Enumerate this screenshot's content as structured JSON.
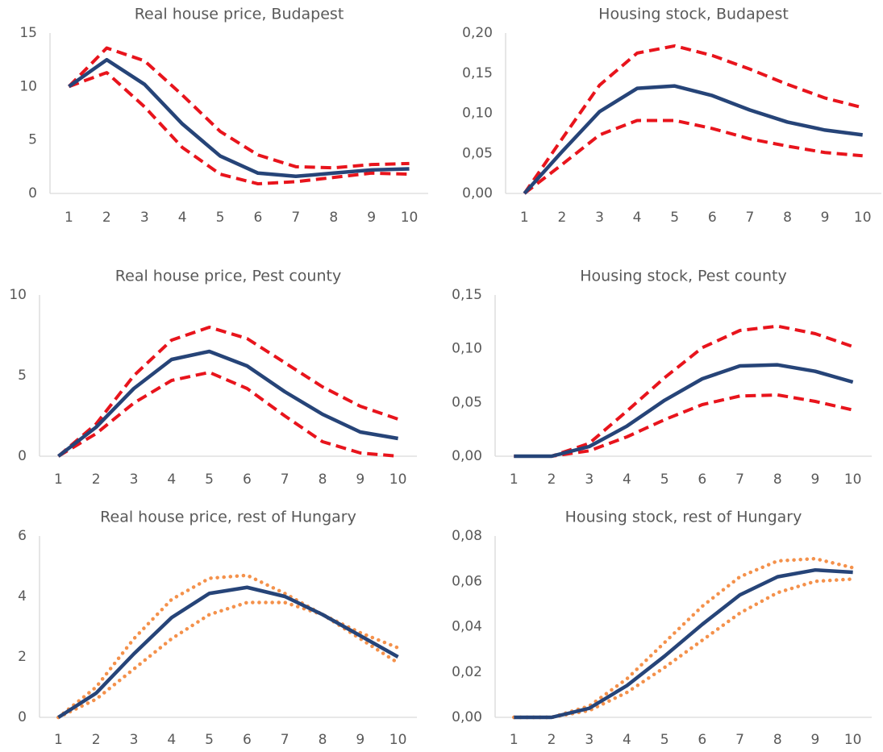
{
  "chart_data": [
    {
      "type": "line",
      "title": "Real house price, Budapest",
      "categories": [
        1,
        2,
        3,
        4,
        5,
        6,
        7,
        8,
        9,
        10
      ],
      "ylim": [
        0,
        15
      ],
      "yticks": [
        0,
        5,
        10,
        15
      ],
      "series": [
        {
          "color": "#e8141c",
          "style": "dashed",
          "values": [
            10,
            13.6,
            12.4,
            9.2,
            5.8,
            3.6,
            2.5,
            2.4,
            2.7,
            2.8
          ]
        },
        {
          "color": "#e8141c",
          "style": "dashed",
          "values": [
            10,
            11.3,
            8.1,
            4.3,
            1.8,
            0.9,
            1.1,
            1.5,
            1.9,
            1.8
          ]
        },
        {
          "color": "#264478",
          "style": "solid",
          "values": [
            10,
            12.5,
            10.2,
            6.5,
            3.5,
            1.9,
            1.6,
            1.9,
            2.2,
            2.3
          ]
        }
      ]
    },
    {
      "type": "line",
      "title": "Housing stock, Budapest",
      "categories": [
        1,
        2,
        3,
        4,
        5,
        6,
        7,
        8,
        9,
        10
      ],
      "ylim": [
        0,
        0.2
      ],
      "yticks": [
        {
          "value": 0,
          "label": "0,00"
        },
        {
          "value": 0.05,
          "label": "0,05"
        },
        {
          "value": 0.1,
          "label": "0,10"
        },
        {
          "value": 0.15,
          "label": "0,15"
        },
        {
          "value": 0.2,
          "label": "0,20"
        }
      ],
      "series": [
        {
          "color": "#e8141c",
          "style": "dashed",
          "values": [
            0,
            0.068,
            0.135,
            0.175,
            0.184,
            0.172,
            0.155,
            0.136,
            0.119,
            0.107
          ]
        },
        {
          "color": "#e8141c",
          "style": "dashed",
          "values": [
            0,
            0.036,
            0.073,
            0.091,
            0.091,
            0.081,
            0.068,
            0.059,
            0.051,
            0.047
          ]
        },
        {
          "color": "#264478",
          "style": "solid",
          "values": [
            0,
            0.052,
            0.102,
            0.131,
            0.134,
            0.122,
            0.104,
            0.089,
            0.079,
            0.073
          ]
        }
      ]
    },
    {
      "type": "line",
      "title": "Real house price, Pest county",
      "categories": [
        1,
        2,
        3,
        4,
        5,
        6,
        7,
        8,
        9,
        10
      ],
      "ylim": [
        0,
        10
      ],
      "yticks": [
        0,
        5,
        10
      ],
      "series": [
        {
          "color": "#e8141c",
          "style": "dashed",
          "values": [
            0,
            2.0,
            5.0,
            7.2,
            8.0,
            7.3,
            5.8,
            4.3,
            3.1,
            2.3
          ]
        },
        {
          "color": "#e8141c",
          "style": "dashed",
          "values": [
            0,
            1.4,
            3.3,
            4.7,
            5.2,
            4.2,
            2.5,
            0.9,
            0.2,
            0
          ]
        },
        {
          "color": "#264478",
          "style": "solid",
          "values": [
            0,
            1.8,
            4.2,
            6.0,
            6.5,
            5.6,
            4.0,
            2.6,
            1.5,
            1.1
          ]
        }
      ]
    },
    {
      "type": "line",
      "title": "Housing stock, Pest county",
      "categories": [
        1,
        2,
        3,
        4,
        5,
        6,
        7,
        8,
        9,
        10
      ],
      "ylim": [
        0,
        0.15
      ],
      "yticks": [
        {
          "value": 0,
          "label": "0,00"
        },
        {
          "value": 0.05,
          "label": "0,05"
        },
        {
          "value": 0.1,
          "label": "0,10"
        },
        {
          "value": 0.15,
          "label": "0,15"
        }
      ],
      "series": [
        {
          "color": "#e8141c",
          "style": "dashed",
          "values": [
            0,
            0,
            0.012,
            0.042,
            0.073,
            0.101,
            0.117,
            0.121,
            0.114,
            0.102
          ]
        },
        {
          "color": "#e8141c",
          "style": "dashed",
          "values": [
            0,
            0,
            0.005,
            0.018,
            0.034,
            0.048,
            0.056,
            0.057,
            0.051,
            0.043
          ]
        },
        {
          "color": "#264478",
          "style": "solid",
          "values": [
            0,
            0,
            0.009,
            0.028,
            0.052,
            0.072,
            0.084,
            0.085,
            0.079,
            0.069
          ]
        }
      ]
    },
    {
      "type": "line",
      "title": "Real house price, rest of Hungary",
      "categories": [
        1,
        2,
        3,
        4,
        5,
        6,
        7,
        8,
        9,
        10
      ],
      "ylim": [
        0,
        6
      ],
      "yticks": [
        0,
        2,
        4,
        6
      ],
      "series": [
        {
          "color": "#f4914b",
          "style": "dotted",
          "values": [
            0,
            1.0,
            2.6,
            3.9,
            4.6,
            4.7,
            4.1,
            3.4,
            2.8,
            2.3
          ]
        },
        {
          "color": "#f4914b",
          "style": "dotted",
          "values": [
            0,
            0.6,
            1.6,
            2.6,
            3.4,
            3.8,
            3.8,
            3.4,
            2.6,
            1.8
          ]
        },
        {
          "color": "#264478",
          "style": "solid",
          "values": [
            0,
            0.8,
            2.1,
            3.3,
            4.1,
            4.3,
            4.0,
            3.4,
            2.7,
            2.0
          ]
        }
      ]
    },
    {
      "type": "line",
      "title": "Housing stock, rest of Hungary",
      "categories": [
        1,
        2,
        3,
        4,
        5,
        6,
        7,
        8,
        9,
        10
      ],
      "ylim": [
        0,
        0.08
      ],
      "yticks": [
        {
          "value": 0,
          "label": "0,00"
        },
        {
          "value": 0.02,
          "label": "0,02"
        },
        {
          "value": 0.04,
          "label": "0,04"
        },
        {
          "value": 0.06,
          "label": "0,06"
        },
        {
          "value": 0.08,
          "label": "0,08"
        }
      ],
      "series": [
        {
          "color": "#f4914b",
          "style": "dotted",
          "values": [
            0,
            0,
            0.005,
            0.017,
            0.033,
            0.049,
            0.062,
            0.069,
            0.07,
            0.066
          ]
        },
        {
          "color": "#f4914b",
          "style": "dotted",
          "values": [
            0,
            0,
            0.003,
            0.011,
            0.022,
            0.034,
            0.046,
            0.055,
            0.06,
            0.061
          ]
        },
        {
          "color": "#264478",
          "style": "solid",
          "values": [
            0,
            0,
            0.004,
            0.014,
            0.027,
            0.041,
            0.054,
            0.062,
            0.065,
            0.064
          ]
        }
      ]
    }
  ]
}
